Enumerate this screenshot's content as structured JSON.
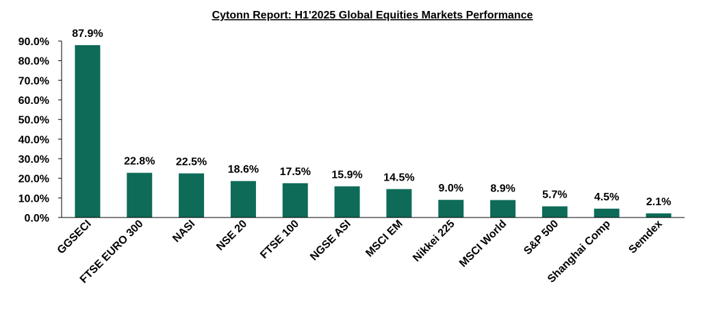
{
  "chart_data": {
    "type": "bar",
    "title": "Cytonn Report: H1'2025 Global Equities Markets Performance",
    "categories": [
      "GGSECI",
      "FTSE EURO 300",
      "NASI",
      "NSE 20",
      "FTSE 100",
      "NGSE ASI",
      "MSCI EM",
      "Nikkei 225",
      "MSCI World",
      "S&P 500",
      "Shanghai Comp",
      "Semdex"
    ],
    "values": [
      87.9,
      22.8,
      22.5,
      18.6,
      17.5,
      15.9,
      14.5,
      9.0,
      8.9,
      5.7,
      4.5,
      2.1
    ],
    "data_labels": [
      "87.9%",
      "22.8%",
      "22.5%",
      "18.6%",
      "17.5%",
      "15.9%",
      "14.5%",
      "9.0%",
      "8.9%",
      "5.7%",
      "4.5%",
      "2.1%"
    ],
    "y_ticks": [
      "0.0%",
      "10.0%",
      "20.0%",
      "30.0%",
      "40.0%",
      "50.0%",
      "60.0%",
      "70.0%",
      "80.0%",
      "90.0%"
    ],
    "ylim": [
      0,
      90
    ],
    "xlabel": "",
    "ylabel": "",
    "grid": false,
    "bar_color": "#0e6b58",
    "axis_color": "#000000"
  }
}
